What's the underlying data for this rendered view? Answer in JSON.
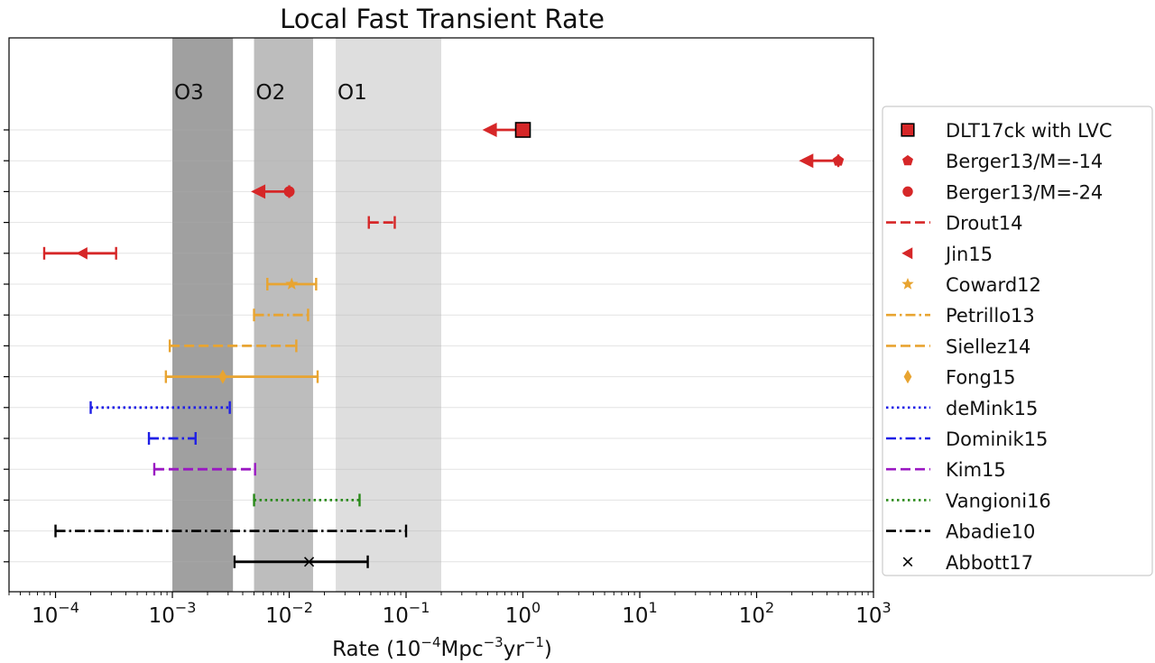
{
  "chart_data": {
    "type": "scatter",
    "title": "Local Fast Transient Rate",
    "xlabel": "Rate (10",
    "xlabel_sup1": "−4",
    "xlabel_mid": "Mpc",
    "xlabel_sup2": "−3",
    "xlabel_mid2": "yr",
    "xlabel_sup3": "−1",
    "xlabel_end": ")",
    "x_scale": "log",
    "xlim": [
      4e-05,
      1000
    ],
    "x_ticks": [
      {
        "value": 0.0001,
        "base": "10",
        "exp": "−4"
      },
      {
        "value": 0.001,
        "base": "10",
        "exp": "−3"
      },
      {
        "value": 0.01,
        "base": "10",
        "exp": "−2"
      },
      {
        "value": 0.1,
        "base": "10",
        "exp": "−1"
      },
      {
        "value": 1,
        "base": "10",
        "exp": "0"
      },
      {
        "value": 10,
        "base": "10",
        "exp": "1"
      },
      {
        "value": 100,
        "base": "10",
        "exp": "2"
      },
      {
        "value": 1000,
        "base": "10",
        "exp": "3"
      }
    ],
    "grid": "horizontal",
    "legend_position": "outside-right",
    "bands": [
      {
        "label": "O3",
        "x_range": [
          0.001,
          0.0033
        ],
        "color": "#a0a0a0"
      },
      {
        "label": "O2",
        "x_range": [
          0.005,
          0.016
        ],
        "color": "#bdbdbd"
      },
      {
        "label": "O1",
        "x_range": [
          0.025,
          0.2
        ],
        "color": "#dedede"
      }
    ],
    "series": [
      {
        "name": "DLT17ck with LVC",
        "color": "#d62728",
        "marker": "square",
        "line": "solid",
        "low": 0.45,
        "high": 1.1,
        "point": 1.0,
        "upper_limit": true
      },
      {
        "name": "Berger13/M=-14",
        "color": "#d62728",
        "marker": "pentagon",
        "line": "solid",
        "low": 230,
        "high": 500,
        "point": 500,
        "upper_limit": true
      },
      {
        "name": "Berger13/M=-24",
        "color": "#d62728",
        "marker": "circle",
        "line": "solid",
        "low": 0.0047,
        "high": 0.01,
        "point": 0.01,
        "upper_limit": true
      },
      {
        "name": "Drout14",
        "color": "#d62728",
        "marker": "none",
        "line": "dashed",
        "low": 0.048,
        "high": 0.08
      },
      {
        "name": "Jin15",
        "color": "#d62728",
        "marker": "triangle-left",
        "line": "solid",
        "low": 8e-05,
        "high": 0.00033,
        "point": 0.00017
      },
      {
        "name": "Coward12",
        "color": "#e8a431",
        "marker": "star",
        "line": "solid",
        "low": 0.0065,
        "high": 0.017,
        "point": 0.0105
      },
      {
        "name": "Petrillo13",
        "color": "#e8a431",
        "marker": "none",
        "line": "dashdot",
        "low": 0.005,
        "high": 0.0145
      },
      {
        "name": "Siellez14",
        "color": "#e8a431",
        "marker": "none",
        "line": "dashed",
        "low": 0.00095,
        "high": 0.0115
      },
      {
        "name": "Fong15",
        "color": "#e8a431",
        "marker": "diamond",
        "line": "solid",
        "low": 0.00088,
        "high": 0.0175,
        "point": 0.0027
      },
      {
        "name": "deMink15",
        "color": "#1f1fe6",
        "marker": "none",
        "line": "dotted",
        "low": 0.0002,
        "high": 0.0031
      },
      {
        "name": "Dominik15",
        "color": "#1f1fe6",
        "marker": "none",
        "line": "dashdot",
        "low": 0.00063,
        "high": 0.00158
      },
      {
        "name": "Kim15",
        "color": "#9a18c2",
        "marker": "none",
        "line": "dashed",
        "low": 0.0007,
        "high": 0.0051
      },
      {
        "name": "Vangioni16",
        "color": "#2a8a1a",
        "marker": "none",
        "line": "dotted",
        "low": 0.005,
        "high": 0.04
      },
      {
        "name": "Abadie10",
        "color": "#000000",
        "marker": "none",
        "line": "dashdot",
        "low": 0.0001,
        "high": 0.1
      },
      {
        "name": "Abbott17",
        "color": "#000000",
        "marker": "x",
        "line": "solid",
        "low": 0.0034,
        "high": 0.047,
        "point": 0.0148
      }
    ]
  }
}
